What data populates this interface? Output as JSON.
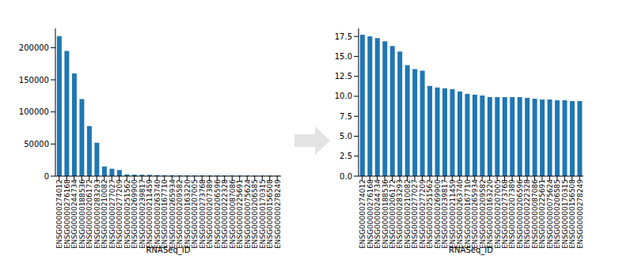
{
  "chart_data": [
    {
      "type": "bar",
      "xlabel": "RNASeq_ID",
      "color": "#1f77b4",
      "grid": false,
      "categories": [
        "ENSG00000274012",
        "ENSG00000276168",
        "ENSG00000244734",
        "ENSG00000188536",
        "ENSG00000206172",
        "ENSG00000283293",
        "ENSG00000210082",
        "ENSG00000277027",
        "ENSG00000277209",
        "ENSG00000251562",
        "ENSG00000269900",
        "ENSG00000239817",
        "ENSG00000211459",
        "ENSG00000263740",
        "ENSG00000167710",
        "ENSG00000265934",
        "ENSG00000209582",
        "ENSG00000163220",
        "ENSG00000207005",
        "ENSG00000273768",
        "ENSG00000207389",
        "ENSG00000206596",
        "ENSG00000222328",
        "ENSG00000087086",
        "ENSG00000225691",
        "ENSG00000075624",
        "ENSG00000206585",
        "ENSG00000170315",
        "ENSG00000156508",
        "ENSG00000278249"
      ],
      "values": [
        218000,
        195000,
        160000,
        120000,
        78000,
        52000,
        15000,
        11500,
        9500,
        2600,
        2200,
        2100,
        2000,
        1600,
        1300,
        1200,
        1100,
        1000,
        950,
        950,
        940,
        930,
        900,
        850,
        800,
        780,
        750,
        720,
        700,
        680
      ],
      "ylim": [
        0,
        230000
      ],
      "yticks": [
        0,
        50000,
        100000,
        150000,
        200000
      ]
    },
    {
      "type": "bar",
      "xlabel": "RNASeq_ID",
      "color": "#1f77b4",
      "grid": false,
      "categories": [
        "ENSG00000274012",
        "ENSG00000276168",
        "ENSG00000244734",
        "ENSG00000188536",
        "ENSG00000206172",
        "ENSG00000283293",
        "ENSG00000210082",
        "ENSG00000277027",
        "ENSG00000277209",
        "ENSG00000251562",
        "ENSG00000269900",
        "ENSG00000239817",
        "ENSG00000211459",
        "ENSG00000263740",
        "ENSG00000167710",
        "ENSG00000265934",
        "ENSG00000209582",
        "ENSG00000163220",
        "ENSG00000207005",
        "ENSG00000273768",
        "ENSG00000207389",
        "ENSG00000206596",
        "ENSG00000222328",
        "ENSG00000087086",
        "ENSG00000225691",
        "ENSG00000075624",
        "ENSG00000206585",
        "ENSG00000170315",
        "ENSG00000156508",
        "ENSG00000278249"
      ],
      "values": [
        17.7,
        17.5,
        17.3,
        16.9,
        16.3,
        15.6,
        13.9,
        13.4,
        13.2,
        11.3,
        11.1,
        11.0,
        10.9,
        10.6,
        10.3,
        10.2,
        10.1,
        9.9,
        9.9,
        9.9,
        9.9,
        9.9,
        9.8,
        9.7,
        9.6,
        9.6,
        9.5,
        9.5,
        9.4,
        9.4
      ],
      "ylim": [
        0,
        18.5
      ],
      "yticks": [
        {
          "value": 0,
          "label": "0.0"
        },
        {
          "value": 2.5,
          "label": "2.5"
        },
        {
          "value": 5,
          "label": "5.0"
        },
        {
          "value": 7.5,
          "label": "7.5"
        },
        {
          "value": 10,
          "label": "10.0"
        },
        {
          "value": 12.5,
          "label": "12.5"
        },
        {
          "value": 15,
          "label": "15.0"
        },
        {
          "value": 17.5,
          "label": "17.5"
        }
      ]
    }
  ]
}
